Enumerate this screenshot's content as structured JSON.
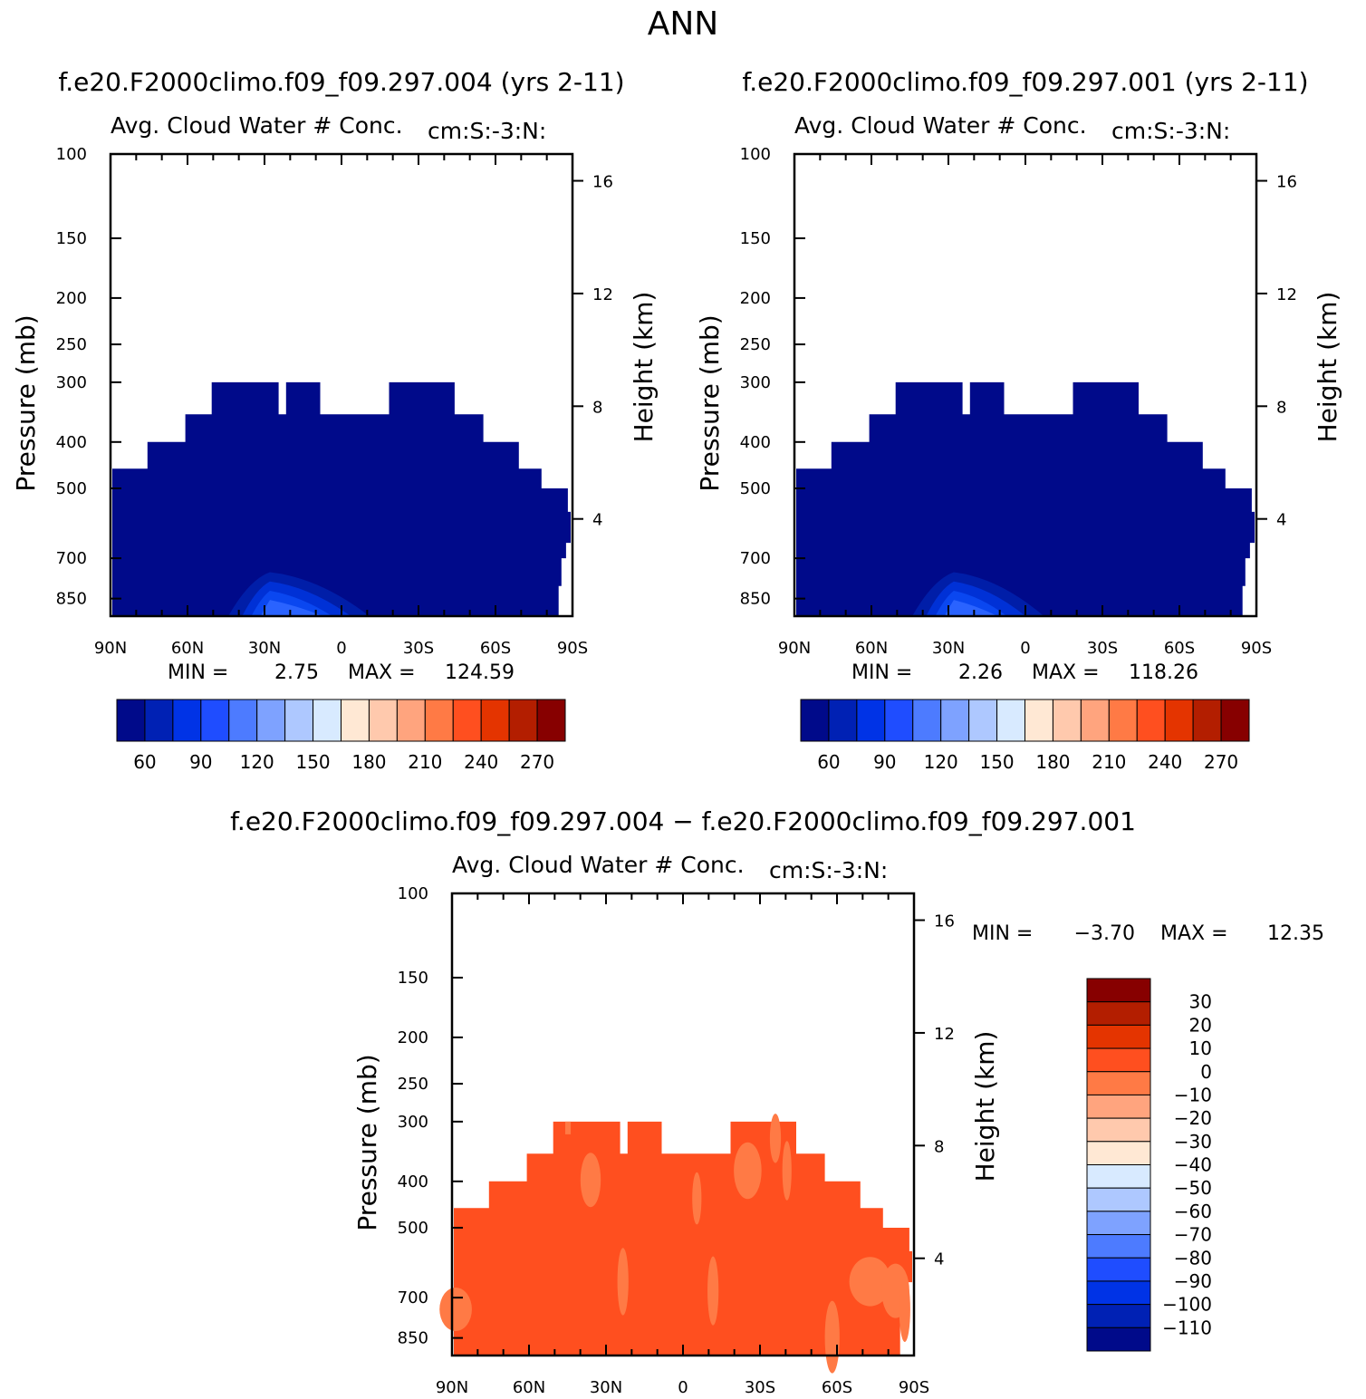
{
  "figure": {
    "title": "ANN",
    "case1_title": "f.e20.F2000climo.f09_f09.297.004 (yrs 2-11)",
    "case2_title": "f.e20.F2000climo.f09_f09.297.001 (yrs 2-11)",
    "diff_title": "f.e20.F2000climo.f09_f09.297.004 − f.e20.F2000climo.f09_f09.297.001"
  },
  "chart_data": [
    {
      "type": "heatmap",
      "panel": "case1",
      "title": "Avg. Cloud Water # Conc.",
      "units": "cm:S:-3:N:",
      "ylabel": "Pressure (mb)",
      "ylabel_right": "Height (km)",
      "y_ticks": [
        "100",
        "150",
        "200",
        "250",
        "300",
        "400",
        "500",
        "700",
        "850"
      ],
      "y_ticks_right": [
        "16",
        "12",
        "8",
        "4"
      ],
      "x_ticks": [
        "90N",
        "60N",
        "30N",
        "0",
        "30S",
        "60S",
        "90S"
      ],
      "ylim": [
        1000,
        100
      ],
      "y_scale": "log",
      "min_label": "MIN =",
      "min_value": "2.75",
      "max_label": "MAX =",
      "max_value": "124.59",
      "colorbar_labels": [
        "60",
        "90",
        "120",
        "150",
        "180",
        "210",
        "240",
        "270"
      ],
      "colorbar_colors": [
        "#000a8a",
        "#0021b4",
        "#0033e6",
        "#1f4dff",
        "#4d7bff",
        "#7ea2ff",
        "#aec8ff",
        "#d8eaff",
        "#ffe8d4",
        "#ffc9ad",
        "#ffa47e",
        "#ff7a45",
        "#ff4f1f",
        "#e43400",
        "#b31e00",
        "#870000"
      ],
      "field_color": "#000a8a",
      "enhanced_colors": [
        "#001ea8",
        "#0031d6",
        "#0a47f0",
        "#2a63ff"
      ]
    },
    {
      "type": "heatmap",
      "panel": "case2",
      "title": "Avg. Cloud Water # Conc.",
      "units": "cm:S:-3:N:",
      "ylabel": "Pressure (mb)",
      "ylabel_right": "Height (km)",
      "y_ticks": [
        "100",
        "150",
        "200",
        "250",
        "300",
        "400",
        "500",
        "700",
        "850"
      ],
      "y_ticks_right": [
        "16",
        "12",
        "8",
        "4"
      ],
      "x_ticks": [
        "90N",
        "60N",
        "30N",
        "0",
        "30S",
        "60S",
        "90S"
      ],
      "ylim": [
        1000,
        100
      ],
      "y_scale": "log",
      "min_label": "MIN =",
      "min_value": "2.26",
      "max_label": "MAX =",
      "max_value": "118.26",
      "colorbar_labels": [
        "60",
        "90",
        "120",
        "150",
        "180",
        "210",
        "240",
        "270"
      ],
      "colorbar_colors": [
        "#000a8a",
        "#0021b4",
        "#0033e6",
        "#1f4dff",
        "#4d7bff",
        "#7ea2ff",
        "#aec8ff",
        "#d8eaff",
        "#ffe8d4",
        "#ffc9ad",
        "#ffa47e",
        "#ff7a45",
        "#ff4f1f",
        "#e43400",
        "#b31e00",
        "#870000"
      ],
      "field_color": "#000a8a",
      "enhanced_colors": [
        "#001ea8",
        "#0031d6",
        "#0a47f0",
        "#2a63ff"
      ]
    },
    {
      "type": "heatmap",
      "panel": "difference",
      "title": "Avg. Cloud Water # Conc.",
      "units": "cm:S:-3:N:",
      "ylabel": "Pressure (mb)",
      "ylabel_right": "Height (km)",
      "y_ticks": [
        "100",
        "150",
        "200",
        "250",
        "300",
        "400",
        "500",
        "700",
        "850"
      ],
      "y_ticks_right": [
        "16",
        "12",
        "8",
        "4"
      ],
      "x_ticks": [
        "90N",
        "60N",
        "30N",
        "0",
        "30S",
        "60S",
        "90S"
      ],
      "ylim": [
        1000,
        100
      ],
      "y_scale": "log",
      "min_label": "MIN =",
      "min_value": "−3.70",
      "max_label": "MAX =",
      "max_value": "12.35",
      "colorbar_labels": [
        "30",
        "20",
        "10",
        "0",
        "−10",
        "−20",
        "−30",
        "−40",
        "−50",
        "−60",
        "−70",
        "−80",
        "−90",
        "−100",
        "−110"
      ],
      "colorbar_colors": [
        "#870000",
        "#b31e00",
        "#e43400",
        "#ff4f1f",
        "#ff7a45",
        "#ffa47e",
        "#ffc9ad",
        "#ffe8d4",
        "#d8eaff",
        "#aec8ff",
        "#7ea2ff",
        "#4d7bff",
        "#1f4dff",
        "#0033e6",
        "#0021b4",
        "#000a8a"
      ],
      "field_color": "#ff4f1f",
      "enhanced_colors": [
        "#ff7a45"
      ]
    }
  ]
}
